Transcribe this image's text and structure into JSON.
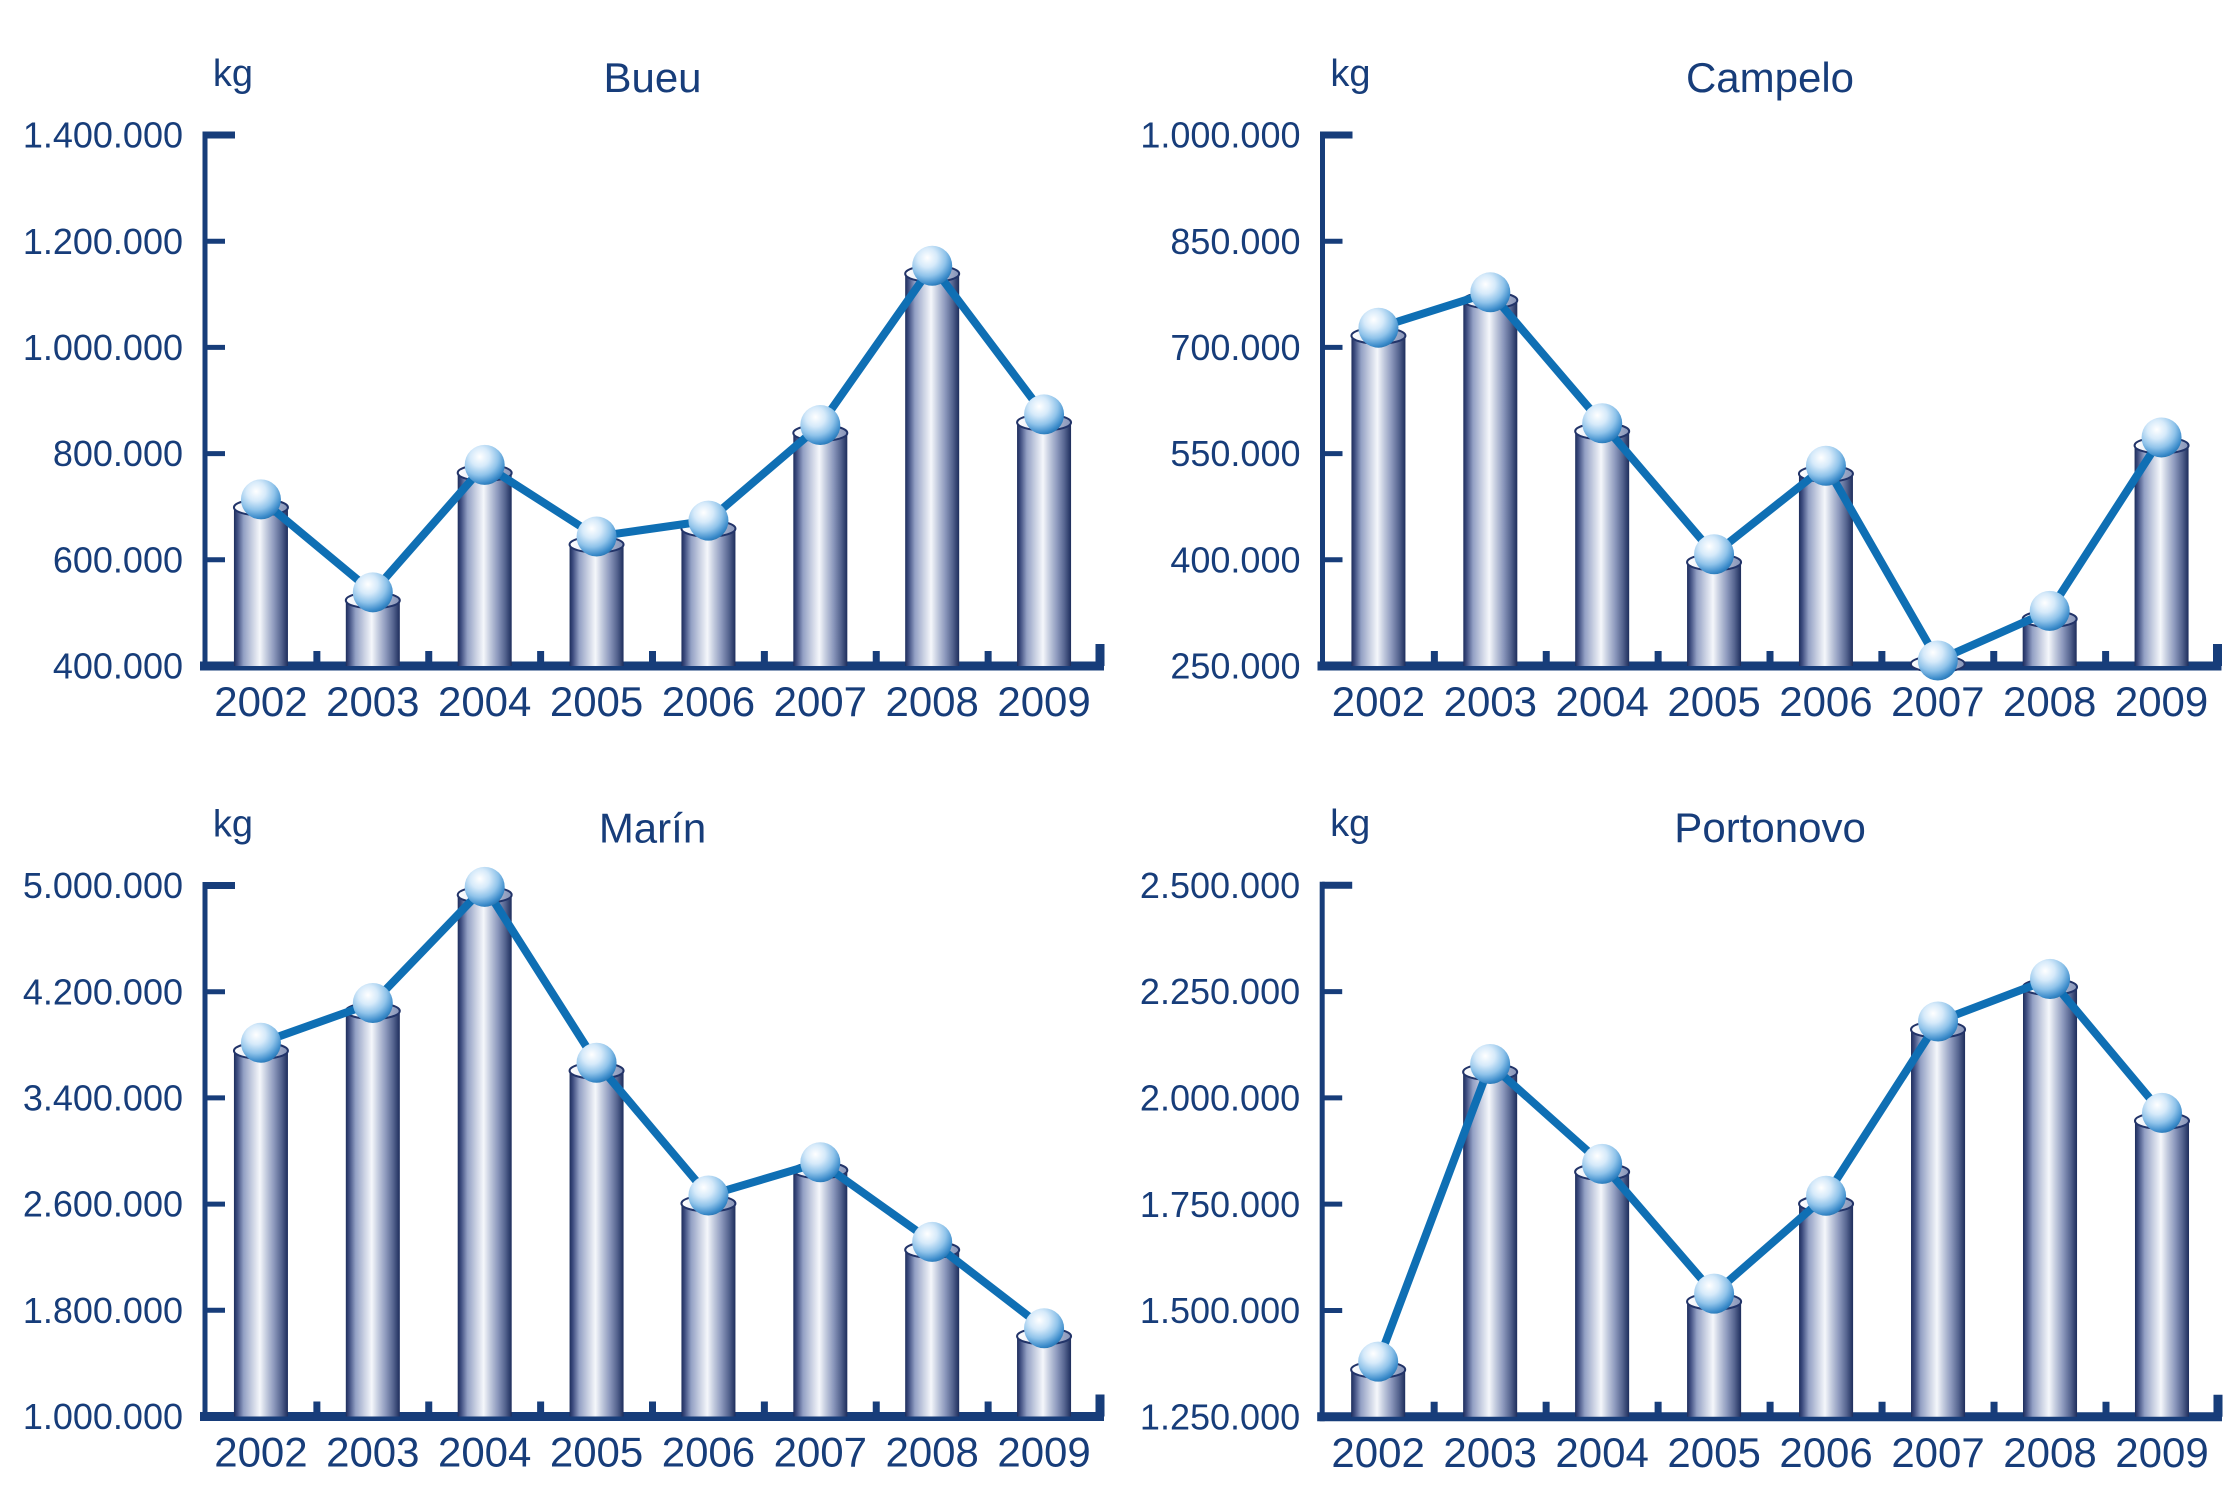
{
  "page": {
    "background": "#ffffff",
    "layout": "2x2 grid of charts"
  },
  "colors": {
    "navy": "#173d7a",
    "line_blue": "#0f6fb4",
    "bar_edge_dark": "#1d2d5c",
    "bar_mid": "#8d99bd",
    "bar_highlight": "#f5f7fb",
    "cap_light": "#ffffff",
    "cap_dark": "#8593b8",
    "sphere_highlight": "#ffffff",
    "sphere_mid": "#8fc3ea",
    "sphere_dark": "#15639f",
    "background": "#ffffff"
  },
  "chart_data": [
    {
      "type": "bar",
      "overlay": "line-with-sphere-markers",
      "title": "Bueu",
      "unit": "kg",
      "xlabel": "",
      "ylabel": "kg",
      "categories": [
        "2002",
        "2003",
        "2004",
        "2005",
        "2006",
        "2007",
        "2008",
        "2009"
      ],
      "values": [
        710000,
        535000,
        775000,
        640000,
        670000,
        850000,
        1150000,
        870000
      ],
      "ylim": [
        400000,
        1400000
      ],
      "ytick_step": 200000,
      "yticks": [
        "400.000",
        "600.000",
        "800.000",
        "1.000.000",
        "1.200.000",
        "1.400.000"
      ],
      "grid": false,
      "legend": "none"
    },
    {
      "type": "bar",
      "overlay": "line-with-sphere-markers",
      "title": "Campelo",
      "unit": "kg",
      "xlabel": "",
      "ylabel": "kg",
      "categories": [
        "2002",
        "2003",
        "2004",
        "2005",
        "2006",
        "2007",
        "2008",
        "2009"
      ],
      "values": [
        725000,
        775000,
        590000,
        405000,
        530000,
        255000,
        325000,
        570000
      ],
      "ylim": [
        250000,
        1000000
      ],
      "ytick_step": 150000,
      "yticks": [
        "250.000",
        "400.000",
        "550.000",
        "700.000",
        "850.000",
        "1.000.000"
      ],
      "grid": false,
      "legend": "none"
    },
    {
      "type": "bar",
      "overlay": "line-with-sphere-markers",
      "title": "Marín",
      "unit": "kg",
      "xlabel": "",
      "ylabel": "kg",
      "categories": [
        "2002",
        "2003",
        "2004",
        "2005",
        "2006",
        "2007",
        "2008",
        "2009"
      ],
      "values": [
        3800000,
        4100000,
        4975000,
        3650000,
        2650000,
        2900000,
        2300000,
        1650000
      ],
      "ylim": [
        1000000,
        5000000
      ],
      "ytick_step": 800000,
      "yticks": [
        "1.000.000",
        "1.800.000",
        "2.600.000",
        "3.400.000",
        "4.200.000",
        "5.000.000"
      ],
      "grid": false,
      "legend": "none"
    },
    {
      "type": "bar",
      "overlay": "line-with-sphere-markers",
      "title": "Portonovo",
      "unit": "kg",
      "xlabel": "",
      "ylabel": "kg",
      "categories": [
        "2002",
        "2003",
        "2004",
        "2005",
        "2006",
        "2007",
        "2008",
        "2009"
      ],
      "values": [
        1375000,
        2075000,
        1840000,
        1535000,
        1765000,
        2175000,
        2275000,
        1960000
      ],
      "ylim": [
        1250000,
        2500000
      ],
      "ytick_step": 250000,
      "yticks": [
        "1.250.000",
        "1.500.000",
        "1.750.000",
        "2.000.000",
        "2.250.000",
        "2.500.000"
      ],
      "grid": false,
      "legend": "none"
    }
  ]
}
